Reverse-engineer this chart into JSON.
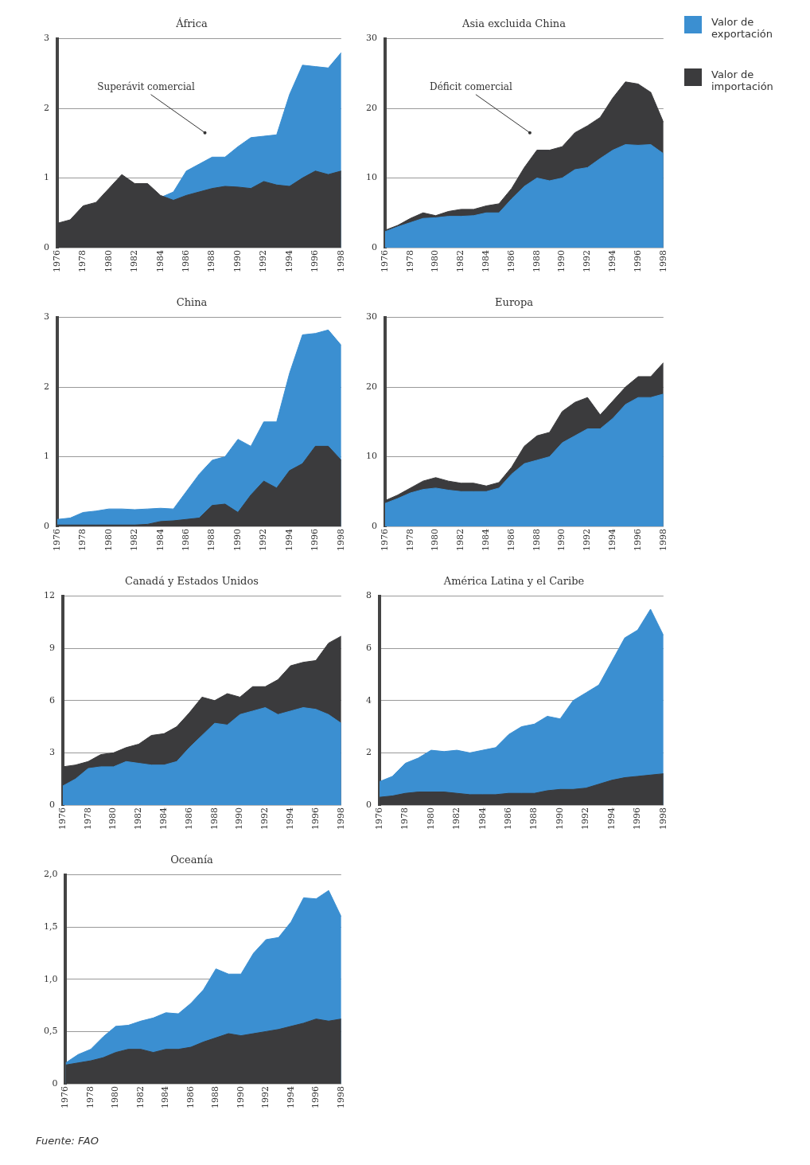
{
  "chart_data": [
    {
      "type": "area",
      "title": "África",
      "x": [
        1976,
        1977,
        1978,
        1979,
        1980,
        1981,
        1982,
        1983,
        1984,
        1985,
        1986,
        1987,
        1988,
        1989,
        1990,
        1991,
        1992,
        1993,
        1994,
        1995,
        1996,
        1997,
        1998
      ],
      "xlim": [
        1976,
        1998
      ],
      "xticks": [
        1976,
        1978,
        1980,
        1982,
        1984,
        1986,
        1988,
        1990,
        1992,
        1994,
        1996,
        1998
      ],
      "ylim": [
        0,
        3
      ],
      "yticks": [
        0,
        1,
        2,
        3
      ],
      "grid": "y",
      "annotations": [
        "Superávit comercial"
      ],
      "series": [
        {
          "color": "#3b8fd1",
          "values": [
            null,
            null,
            null,
            null,
            null,
            null,
            null,
            null,
            0.72,
            0.8,
            1.1,
            1.2,
            1.3,
            1.3,
            1.45,
            1.58,
            1.6,
            1.62,
            2.2,
            2.62,
            2.6,
            2.58,
            2.8
          ]
        },
        {
          "color": "#3b3b3d",
          "values": [
            0.35,
            0.4,
            0.6,
            0.65,
            0.85,
            1.05,
            0.92,
            0.92,
            0.75,
            0.68,
            0.75,
            0.8,
            0.85,
            0.88,
            0.87,
            0.85,
            0.95,
            0.9,
            0.88,
            1.0,
            1.1,
            1.05,
            1.1
          ]
        }
      ]
    },
    {
      "type": "area",
      "title": "Asia excluida China",
      "x": [
        1976,
        1977,
        1978,
        1979,
        1980,
        1981,
        1982,
        1983,
        1984,
        1985,
        1986,
        1987,
        1988,
        1989,
        1990,
        1991,
        1992,
        1993,
        1994,
        1995,
        1996,
        1997,
        1998
      ],
      "xlim": [
        1976,
        1998
      ],
      "xticks": [
        1976,
        1978,
        1980,
        1982,
        1984,
        1986,
        1988,
        1990,
        1992,
        1994,
        1996,
        1998
      ],
      "ylim": [
        0,
        30
      ],
      "yticks": [
        0,
        10,
        20,
        30
      ],
      "grid": "y",
      "legend": "right",
      "annotations": [
        "Déficit comercial"
      ],
      "series": [
        {
          "name": "Valor de exportación",
          "color": "#3b8fd1",
          "values": [
            2.3,
            3.0,
            3.6,
            4.2,
            4.3,
            4.5,
            4.5,
            4.6,
            5.0,
            5.0,
            7.0,
            8.8,
            10.0,
            9.6,
            10.0,
            11.2,
            11.5,
            12.8,
            14.0,
            14.8,
            14.7,
            14.8,
            13.5
          ]
        },
        {
          "name": "Valor de importación",
          "color": "#3b3b3d",
          "values": [
            2.5,
            3.2,
            4.2,
            5.0,
            4.6,
            5.2,
            5.5,
            5.5,
            6.0,
            6.3,
            8.5,
            11.5,
            14,
            14,
            14.5,
            16.5,
            17.5,
            18.7,
            21.5,
            23.8,
            23.5,
            22.3,
            18
          ]
        }
      ]
    },
    {
      "type": "area",
      "title": "China",
      "x": [
        1976,
        1977,
        1978,
        1979,
        1980,
        1981,
        1982,
        1983,
        1984,
        1985,
        1986,
        1987,
        1988,
        1989,
        1990,
        1991,
        1992,
        1993,
        1994,
        1995,
        1996,
        1997,
        1998
      ],
      "xlim": [
        1976,
        1998
      ],
      "xticks": [
        1976,
        1978,
        1980,
        1982,
        1984,
        1986,
        1988,
        1990,
        1992,
        1994,
        1996,
        1998
      ],
      "ylim": [
        0,
        3
      ],
      "yticks": [
        0,
        1,
        2,
        3
      ],
      "grid": "y",
      "series": [
        {
          "color": "#3b8fd1",
          "values": [
            0.1,
            0.12,
            0.2,
            0.22,
            0.25,
            0.25,
            0.24,
            0.25,
            0.26,
            0.25,
            0.5,
            0.75,
            0.95,
            1.0,
            1.25,
            1.15,
            1.5,
            1.5,
            2.2,
            2.75,
            2.77,
            2.82,
            2.6
          ]
        },
        {
          "color": "#3b3b3d",
          "values": [
            0.02,
            0.02,
            0.02,
            0.02,
            0.02,
            0.02,
            0.02,
            0.03,
            0.07,
            0.08,
            0.1,
            0.12,
            0.3,
            0.32,
            0.2,
            0.45,
            0.65,
            0.55,
            0.8,
            0.9,
            1.15,
            1.15,
            0.95
          ]
        }
      ]
    },
    {
      "type": "area",
      "title": "Europa",
      "x": [
        1976,
        1977,
        1978,
        1979,
        1980,
        1981,
        1982,
        1983,
        1984,
        1985,
        1986,
        1987,
        1988,
        1989,
        1990,
        1991,
        1992,
        1993,
        1994,
        1995,
        1996,
        1997,
        1998
      ],
      "xlim": [
        1976,
        1998
      ],
      "xticks": [
        1976,
        1978,
        1980,
        1982,
        1984,
        1986,
        1988,
        1990,
        1992,
        1994,
        1996,
        1998
      ],
      "ylim": [
        0,
        30
      ],
      "yticks": [
        0,
        10,
        20,
        30
      ],
      "grid": "y",
      "series": [
        {
          "color": "#3b8fd1",
          "values": [
            3.3,
            4.0,
            4.8,
            5.3,
            5.5,
            5.2,
            5.0,
            5.0,
            5.0,
            5.5,
            7.5,
            9.0,
            9.5,
            10,
            12,
            13,
            14,
            14,
            15.5,
            17.5,
            18.5,
            18.5,
            19
          ]
        },
        {
          "color": "#3b3b3d",
          "values": [
            3.7,
            4.5,
            5.5,
            6.5,
            7.0,
            6.5,
            6.2,
            6.2,
            5.8,
            6.3,
            8.5,
            11.5,
            13,
            13.5,
            16.5,
            17.8,
            18.5,
            16,
            18,
            20,
            21.5,
            21.5,
            23.5
          ]
        }
      ]
    },
    {
      "type": "area",
      "title": "Canadá y Estados Unidos",
      "x": [
        1976,
        1977,
        1978,
        1979,
        1980,
        1981,
        1982,
        1983,
        1984,
        1985,
        1986,
        1987,
        1988,
        1989,
        1990,
        1991,
        1992,
        1993,
        1994,
        1995,
        1996,
        1997,
        1998
      ],
      "xlim": [
        1976,
        1998
      ],
      "xticks": [
        1976,
        1978,
        1980,
        1982,
        1984,
        1986,
        1988,
        1990,
        1992,
        1994,
        1996,
        1998
      ],
      "ylim": [
        0,
        12
      ],
      "yticks": [
        0,
        3,
        6,
        9,
        12
      ],
      "grid": "y",
      "series": [
        {
          "color": "#3b8fd1",
          "values": [
            1.1,
            1.5,
            2.1,
            2.2,
            2.2,
            2.5,
            2.4,
            2.3,
            2.3,
            2.5,
            3.3,
            4.0,
            4.7,
            4.6,
            5.2,
            5.4,
            5.6,
            5.2,
            5.4,
            5.6,
            5.5,
            5.2,
            4.7
          ]
        },
        {
          "color": "#3b3b3d",
          "values": [
            2.2,
            2.3,
            2.5,
            2.9,
            3.0,
            3.3,
            3.5,
            4.0,
            4.1,
            4.5,
            5.3,
            6.2,
            6.0,
            6.4,
            6.2,
            6.8,
            6.8,
            7.2,
            8.0,
            8.2,
            8.3,
            9.3,
            9.7
          ]
        }
      ]
    },
    {
      "type": "area",
      "title": "América Latina y el Caribe",
      "x": [
        1976,
        1977,
        1978,
        1979,
        1980,
        1981,
        1982,
        1983,
        1984,
        1985,
        1986,
        1987,
        1988,
        1989,
        1990,
        1991,
        1992,
        1993,
        1994,
        1995,
        1996,
        1997,
        1998
      ],
      "xlim": [
        1976,
        1998
      ],
      "xticks": [
        1976,
        1978,
        1980,
        1982,
        1984,
        1986,
        1988,
        1990,
        1992,
        1994,
        1996,
        1998
      ],
      "ylim": [
        0,
        8
      ],
      "yticks": [
        0,
        2,
        4,
        6,
        8
      ],
      "grid": "y",
      "series": [
        {
          "color": "#3b8fd1",
          "values": [
            0.9,
            1.1,
            1.6,
            1.8,
            2.1,
            2.05,
            2.1,
            2.0,
            2.1,
            2.2,
            2.7,
            3.0,
            3.1,
            3.4,
            3.3,
            4.0,
            4.3,
            4.6,
            5.5,
            6.4,
            6.7,
            7.5,
            6.5
          ]
        },
        {
          "color": "#3b3b3d",
          "values": [
            0.3,
            0.35,
            0.45,
            0.5,
            0.5,
            0.5,
            0.45,
            0.4,
            0.4,
            0.4,
            0.45,
            0.45,
            0.45,
            0.55,
            0.6,
            0.6,
            0.65,
            0.8,
            0.95,
            1.05,
            1.1,
            1.15,
            1.2
          ]
        }
      ]
    },
    {
      "type": "area",
      "title": "Oceanía",
      "x": [
        1976,
        1977,
        1978,
        1979,
        1980,
        1981,
        1982,
        1983,
        1984,
        1985,
        1986,
        1987,
        1988,
        1989,
        1990,
        1991,
        1992,
        1993,
        1994,
        1995,
        1996,
        1997,
        1998
      ],
      "xlim": [
        1976,
        1998
      ],
      "xticks": [
        1976,
        1978,
        1980,
        1982,
        1984,
        1986,
        1988,
        1990,
        1992,
        1994,
        1996,
        1998
      ],
      "ylim": [
        0,
        2
      ],
      "yticks": [
        0,
        {
          "value": 0.5,
          "label": "0,5"
        },
        {
          "value": 1,
          "label": "1,0"
        },
        {
          "value": 1.5,
          "label": "1,5"
        },
        {
          "value": 2,
          "label": "2,0"
        }
      ],
      "grid": "y",
      "annotations": [
        "Fuente: FAO"
      ],
      "series": [
        {
          "color": "#3b8fd1",
          "values": [
            0.2,
            0.28,
            0.33,
            0.45,
            0.55,
            0.56,
            0.6,
            0.63,
            0.68,
            0.67,
            0.77,
            0.9,
            1.1,
            1.05,
            1.05,
            1.25,
            1.38,
            1.4,
            1.55,
            1.78,
            1.77,
            1.85,
            1.6
          ]
        },
        {
          "color": "#3b3b3d",
          "values": [
            0.18,
            0.2,
            0.22,
            0.25,
            0.3,
            0.33,
            0.33,
            0.3,
            0.33,
            0.33,
            0.35,
            0.4,
            0.44,
            0.48,
            0.46,
            0.48,
            0.5,
            0.52,
            0.55,
            0.58,
            0.62,
            0.6,
            0.62
          ]
        }
      ]
    }
  ]
}
